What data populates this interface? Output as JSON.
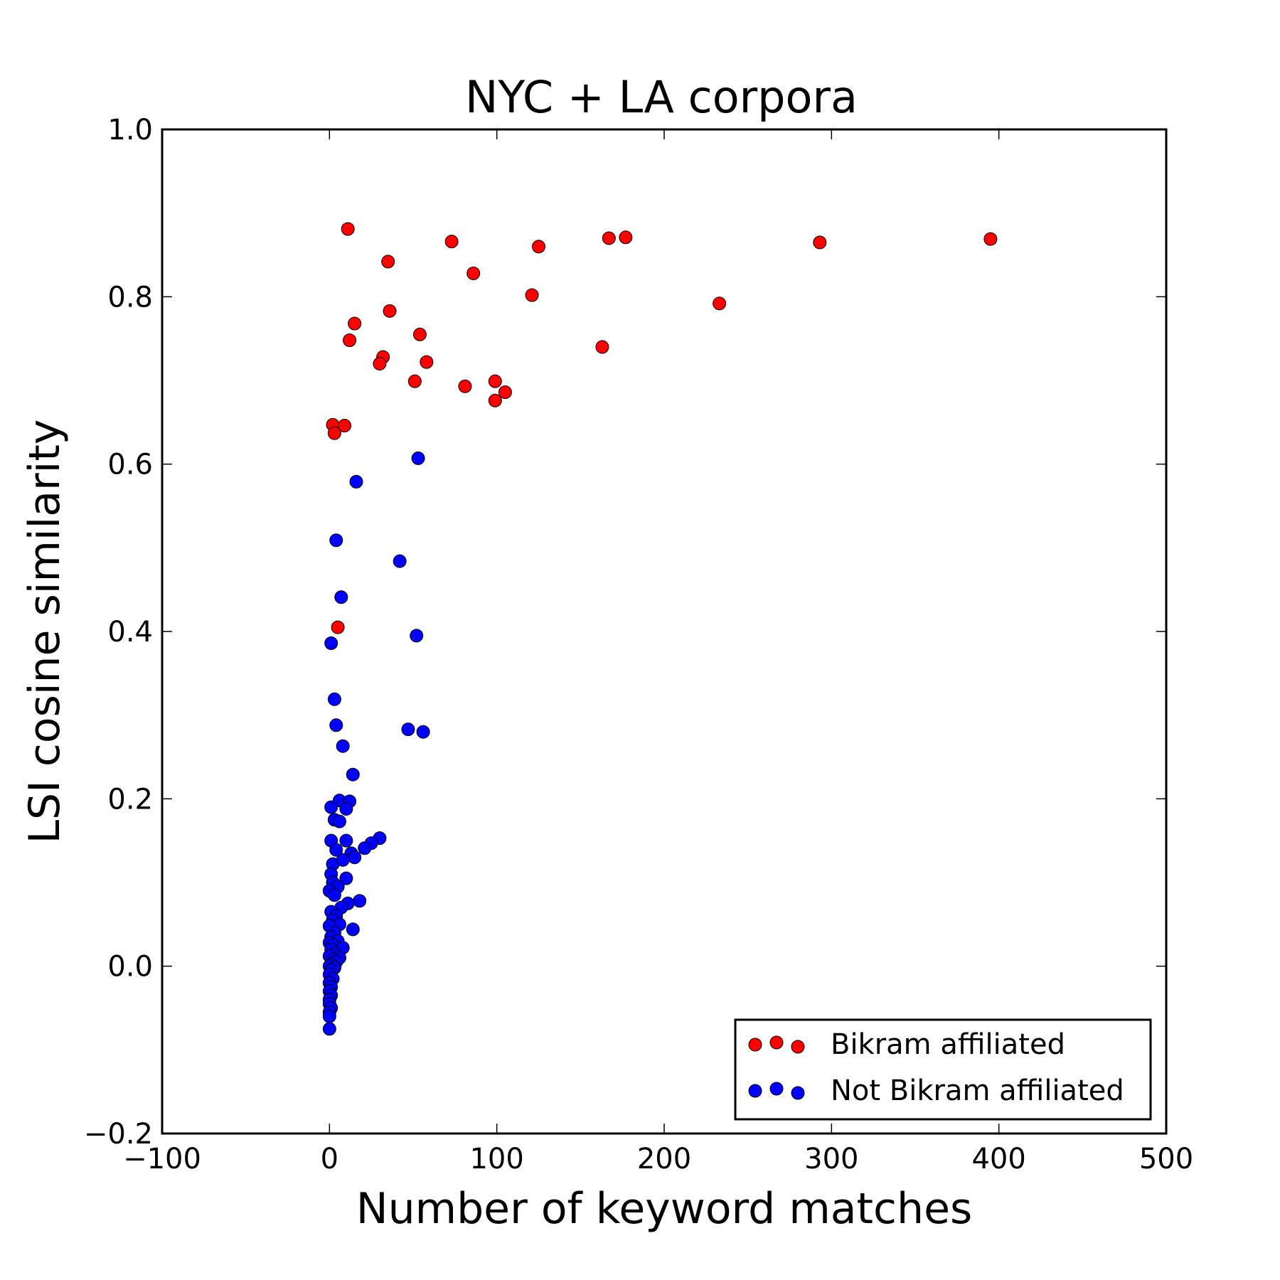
{
  "chart_data": {
    "type": "scatter",
    "title": "NYC + LA corpora",
    "xlabel": "Number of keyword matches",
    "ylabel": "LSI cosine similarity",
    "xlim": [
      -100,
      500
    ],
    "ylim": [
      -0.2,
      1.0
    ],
    "x_ticks": [
      -100,
      0,
      100,
      200,
      300,
      400,
      500
    ],
    "x_tick_labels": [
      "−100",
      "0",
      "100",
      "200",
      "300",
      "400",
      "500"
    ],
    "y_ticks": [
      -0.2,
      0.0,
      0.2,
      0.4,
      0.6,
      0.8,
      1.0
    ],
    "y_tick_labels": [
      "−0.2",
      "0.0",
      "0.2",
      "0.4",
      "0.6",
      "0.8",
      "1.0"
    ],
    "grid": false,
    "legend_position": "lower-right",
    "series": [
      {
        "name": "Bikram affiliated",
        "color": "#ff0000",
        "points": [
          [
            11,
            0.881
          ],
          [
            35,
            0.842
          ],
          [
            73,
            0.866
          ],
          [
            86,
            0.828
          ],
          [
            125,
            0.86
          ],
          [
            167,
            0.87
          ],
          [
            177,
            0.871
          ],
          [
            293,
            0.865
          ],
          [
            395,
            0.869
          ],
          [
            121,
            0.802
          ],
          [
            233,
            0.792
          ],
          [
            36,
            0.783
          ],
          [
            15,
            0.768
          ],
          [
            54,
            0.755
          ],
          [
            12,
            0.748
          ],
          [
            163,
            0.74
          ],
          [
            32,
            0.728
          ],
          [
            30,
            0.72
          ],
          [
            58,
            0.722
          ],
          [
            51,
            0.699
          ],
          [
            99,
            0.699
          ],
          [
            81,
            0.693
          ],
          [
            105,
            0.686
          ],
          [
            99,
            0.676
          ],
          [
            2,
            0.647
          ],
          [
            9,
            0.646
          ],
          [
            3,
            0.637
          ],
          [
            5,
            0.405
          ]
        ]
      },
      {
        "name": "Not Bikram affiliated",
        "color": "#0000ff",
        "points": [
          [
            53,
            0.607
          ],
          [
            16,
            0.579
          ],
          [
            4,
            0.509
          ],
          [
            42,
            0.484
          ],
          [
            7,
            0.441
          ],
          [
            52,
            0.395
          ],
          [
            1,
            0.386
          ],
          [
            3,
            0.319
          ],
          [
            4,
            0.288
          ],
          [
            47,
            0.283
          ],
          [
            56,
            0.28
          ],
          [
            8,
            0.263
          ],
          [
            14,
            0.229
          ],
          [
            6,
            0.198
          ],
          [
            12,
            0.197
          ],
          [
            1,
            0.19
          ],
          [
            10,
            0.188
          ],
          [
            3,
            0.175
          ],
          [
            6,
            0.173
          ],
          [
            30,
            0.153
          ],
          [
            1,
            0.15
          ],
          [
            10,
            0.15
          ],
          [
            25,
            0.147
          ],
          [
            21,
            0.141
          ],
          [
            4,
            0.139
          ],
          [
            13,
            0.135
          ],
          [
            15,
            0.13
          ],
          [
            2,
            0.122
          ],
          [
            8,
            0.127
          ],
          [
            1,
            0.11
          ],
          [
            10,
            0.105
          ],
          [
            2,
            0.1
          ],
          [
            5,
            0.095
          ],
          [
            0,
            0.09
          ],
          [
            3,
            0.085
          ],
          [
            18,
            0.078
          ],
          [
            11,
            0.075
          ],
          [
            7,
            0.07
          ],
          [
            1,
            0.065
          ],
          [
            4,
            0.06
          ],
          [
            2,
            0.055
          ],
          [
            6,
            0.05
          ],
          [
            0,
            0.048
          ],
          [
            14,
            0.044
          ],
          [
            3,
            0.04
          ],
          [
            1,
            0.035
          ],
          [
            5,
            0.03
          ],
          [
            0,
            0.028
          ],
          [
            2,
            0.025
          ],
          [
            8,
            0.022
          ],
          [
            1,
            0.02
          ],
          [
            3,
            0.015
          ],
          [
            0,
            0.012
          ],
          [
            6,
            0.01
          ],
          [
            2,
            0.008
          ],
          [
            4,
            0.005
          ],
          [
            1,
            0.002
          ],
          [
            0,
            0.0
          ],
          [
            3,
            -0.002
          ],
          [
            1,
            -0.005
          ],
          [
            0,
            -0.01
          ],
          [
            2,
            -0.015
          ],
          [
            0,
            -0.02
          ],
          [
            1,
            -0.025
          ],
          [
            0,
            -0.03
          ],
          [
            1,
            -0.035
          ],
          [
            0,
            -0.04
          ],
          [
            0,
            -0.045
          ],
          [
            1,
            -0.05
          ],
          [
            0,
            -0.055
          ],
          [
            0,
            -0.06
          ],
          [
            0,
            -0.075
          ]
        ]
      }
    ]
  }
}
